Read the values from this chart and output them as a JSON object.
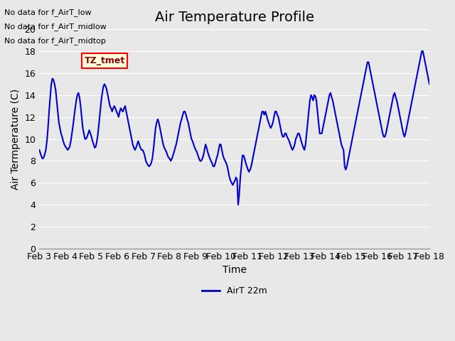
{
  "title": "Air Temperature Profile",
  "xlabel": "Time",
  "ylabel": "Air Termperature (C)",
  "bg_color": "#e8e8e8",
  "line_color": "#0000cc",
  "ylim": [
    0,
    20
  ],
  "yticks": [
    0,
    2,
    4,
    6,
    8,
    10,
    12,
    14,
    16,
    18,
    20
  ],
  "xtick_labels": [
    "Feb 3",
    "Feb 4",
    "Feb 5",
    "Feb 6",
    "Feb 7",
    "Feb 8",
    "Feb 9",
    "Feb 10",
    "Feb 11",
    "Feb 12",
    "Feb 13",
    "Feb 14",
    "Feb 15",
    "Feb 16",
    "Feb 17",
    "Feb 18"
  ],
  "annotations": [
    "No data for f_AirT_low",
    "No data for f_AirT_midlow",
    "No data for f_AirT_midtop"
  ],
  "tz_label": "TZ_tmet",
  "legend_label": "AirT 22m",
  "title_fontsize": 14,
  "axis_fontsize": 10,
  "tick_fontsize": 9,
  "temp_data": [
    9.0,
    8.7,
    8.4,
    8.2,
    8.3,
    8.6,
    9.0,
    9.8,
    11.0,
    12.5,
    13.8,
    15.0,
    15.5,
    15.4,
    15.0,
    14.5,
    13.5,
    12.5,
    11.5,
    11.0,
    10.5,
    10.2,
    9.8,
    9.5,
    9.3,
    9.2,
    9.0,
    9.1,
    9.3,
    9.8,
    10.5,
    11.2,
    12.0,
    12.8,
    13.5,
    14.0,
    14.2,
    13.8,
    13.0,
    12.0,
    11.0,
    10.5,
    10.0,
    10.0,
    10.2,
    10.5,
    10.8,
    10.5,
    10.2,
    9.8,
    9.5,
    9.2,
    9.3,
    9.8,
    10.5,
    11.5,
    12.5,
    13.5,
    14.2,
    14.8,
    15.0,
    14.8,
    14.5,
    14.0,
    13.5,
    13.0,
    12.8,
    12.5,
    12.8,
    13.0,
    12.8,
    12.5,
    12.3,
    12.0,
    12.5,
    12.8,
    12.6,
    12.5,
    12.8,
    13.0,
    12.5,
    12.0,
    11.5,
    11.0,
    10.5,
    10.0,
    9.5,
    9.2,
    9.0,
    9.2,
    9.5,
    9.8,
    9.5,
    9.2,
    9.0,
    9.0,
    8.8,
    8.5,
    8.0,
    7.8,
    7.6,
    7.5,
    7.6,
    7.8,
    8.2,
    9.0,
    10.0,
    11.0,
    11.5,
    11.8,
    11.5,
    11.0,
    10.5,
    10.0,
    9.5,
    9.2,
    9.0,
    8.8,
    8.5,
    8.3,
    8.2,
    8.0,
    8.2,
    8.5,
    8.8,
    9.2,
    9.5,
    10.0,
    10.5,
    11.0,
    11.5,
    11.8,
    12.2,
    12.5,
    12.5,
    12.2,
    11.8,
    11.5,
    11.0,
    10.5,
    10.0,
    9.8,
    9.5,
    9.2,
    9.0,
    8.8,
    8.5,
    8.2,
    8.0,
    8.0,
    8.2,
    8.5,
    9.0,
    9.5,
    9.2,
    8.8,
    8.5,
    8.2,
    8.0,
    7.8,
    7.5,
    7.5,
    7.8,
    8.2,
    8.5,
    9.0,
    9.5,
    9.5,
    9.0,
    8.5,
    8.2,
    8.0,
    7.8,
    7.5,
    7.0,
    6.5,
    6.2,
    6.0,
    5.8,
    6.0,
    6.2,
    6.5,
    6.3,
    4.0,
    5.0,
    6.5,
    7.5,
    8.5,
    8.5,
    8.2,
    7.8,
    7.5,
    7.2,
    7.0,
    7.2,
    7.5,
    8.0,
    8.5,
    9.0,
    9.5,
    10.0,
    10.5,
    11.0,
    11.5,
    12.0,
    12.5,
    12.5,
    12.2,
    12.5,
    12.2,
    11.8,
    11.5,
    11.2,
    11.0,
    11.2,
    11.5,
    12.0,
    12.5,
    12.5,
    12.2,
    12.0,
    11.5,
    11.0,
    10.5,
    10.2,
    10.2,
    10.5,
    10.5,
    10.2,
    10.0,
    9.8,
    9.5,
    9.2,
    9.0,
    9.2,
    9.5,
    10.0,
    10.2,
    10.5,
    10.5,
    10.2,
    9.8,
    9.5,
    9.2,
    9.0,
    9.5,
    10.5,
    11.5,
    12.5,
    13.5,
    14.0,
    13.8,
    13.5,
    14.0,
    13.9,
    13.5,
    12.5,
    11.5,
    10.5,
    10.5,
    10.5,
    11.0,
    11.5,
    12.0,
    12.5,
    13.0,
    13.5,
    14.0,
    14.2,
    13.8,
    13.5,
    13.0,
    12.5,
    12.0,
    11.5,
    11.0,
    10.5,
    10.0,
    9.5,
    9.2,
    9.0,
    7.5,
    7.2,
    7.5,
    8.0,
    8.5,
    9.0,
    9.5,
    10.0,
    10.5,
    11.0,
    11.5,
    12.0,
    12.5,
    13.0,
    13.5,
    14.0,
    14.5,
    15.0,
    15.5,
    16.0,
    16.5,
    17.0,
    17.0,
    16.5,
    16.0,
    15.5,
    15.0,
    14.5,
    14.0,
    13.5,
    13.0,
    12.5,
    12.0,
    11.5,
    11.0,
    10.5,
    10.2,
    10.2,
    10.5,
    11.0,
    11.5,
    12.0,
    12.5,
    13.0,
    13.5,
    14.0,
    14.2,
    13.8,
    13.5,
    13.0,
    12.5,
    12.0,
    11.5,
    11.0,
    10.5,
    10.2,
    10.5,
    11.0,
    11.5,
    12.0,
    12.5,
    13.0,
    13.5,
    14.0,
    14.5,
    15.0,
    15.5,
    16.0,
    16.5,
    17.0,
    17.5,
    18.0,
    18.0,
    17.5,
    17.0,
    16.5,
    16.0,
    15.5,
    15.0
  ]
}
